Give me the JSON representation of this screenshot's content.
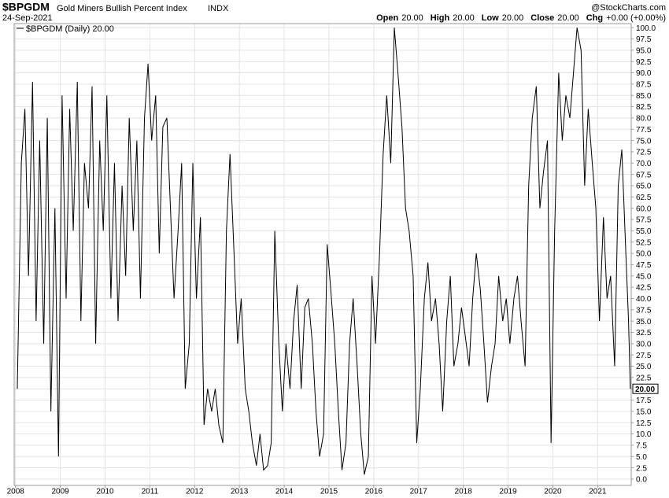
{
  "chart_data": {
    "type": "line",
    "symbol": "$BPGDM",
    "title": "Gold Miners Bullish Percent Index",
    "exchange": "INDX",
    "date": "24-Sep-2021",
    "watermark": "@StockCharts.com",
    "quote": [
      {
        "label": "Open",
        "value": "20.00"
      },
      {
        "label": "High",
        "value": "20.00"
      },
      {
        "label": "Low",
        "value": "20.00"
      },
      {
        "label": "Close",
        "value": "20.00"
      },
      {
        "label": "Chg",
        "value": "+0.00 (+0.00%)"
      }
    ],
    "last_value_label": "20.00",
    "grid": true,
    "x": [
      2008.04,
      2008.13,
      2008.21,
      2008.29,
      2008.38,
      2008.46,
      2008.54,
      2008.63,
      2008.71,
      2008.79,
      2008.88,
      2008.96,
      2009.04,
      2009.13,
      2009.21,
      2009.29,
      2009.38,
      2009.46,
      2009.54,
      2009.63,
      2009.71,
      2009.79,
      2009.88,
      2009.96,
      2010.04,
      2010.13,
      2010.21,
      2010.29,
      2010.38,
      2010.46,
      2010.54,
      2010.63,
      2010.71,
      2010.79,
      2010.88,
      2010.96,
      2011.04,
      2011.13,
      2011.21,
      2011.29,
      2011.38,
      2011.46,
      2011.54,
      2011.63,
      2011.71,
      2011.79,
      2011.88,
      2011.96,
      2012.04,
      2012.13,
      2012.21,
      2012.29,
      2012.38,
      2012.46,
      2012.54,
      2012.63,
      2012.71,
      2012.79,
      2012.88,
      2012.96,
      2013.04,
      2013.13,
      2013.21,
      2013.29,
      2013.38,
      2013.46,
      2013.54,
      2013.63,
      2013.71,
      2013.79,
      2013.88,
      2013.96,
      2014.04,
      2014.13,
      2014.21,
      2014.29,
      2014.38,
      2014.46,
      2014.54,
      2014.63,
      2014.71,
      2014.79,
      2014.88,
      2014.96,
      2015.04,
      2015.13,
      2015.21,
      2015.29,
      2015.38,
      2015.46,
      2015.54,
      2015.63,
      2015.71,
      2015.79,
      2015.88,
      2015.96,
      2016.04,
      2016.13,
      2016.21,
      2016.29,
      2016.38,
      2016.46,
      2016.54,
      2016.63,
      2016.71,
      2016.79,
      2016.88,
      2016.96,
      2017.04,
      2017.13,
      2017.21,
      2017.29,
      2017.38,
      2017.46,
      2017.54,
      2017.63,
      2017.71,
      2017.79,
      2017.88,
      2017.96,
      2018.04,
      2018.13,
      2018.21,
      2018.29,
      2018.38,
      2018.46,
      2018.54,
      2018.63,
      2018.71,
      2018.79,
      2018.88,
      2018.96,
      2019.04,
      2019.13,
      2019.21,
      2019.29,
      2019.38,
      2019.46,
      2019.54,
      2019.63,
      2019.71,
      2019.79,
      2019.88,
      2019.96,
      2020.04,
      2020.13,
      2020.21,
      2020.29,
      2020.38,
      2020.46,
      2020.54,
      2020.63,
      2020.71,
      2020.79,
      2020.88,
      2020.96,
      2021.04,
      2021.13,
      2021.21,
      2021.29,
      2021.38,
      2021.46,
      2021.54,
      2021.63,
      2021.69,
      2021.73
    ],
    "series": [
      {
        "name": "$BPGDM (Daily) 20.00",
        "color": "#000000",
        "values": [
          20,
          70,
          82,
          45,
          88,
          35,
          75,
          30,
          80,
          15,
          60,
          5,
          85,
          40,
          82,
          55,
          88,
          35,
          70,
          60,
          87,
          30,
          75,
          55,
          85,
          40,
          70,
          35,
          65,
          45,
          80,
          55,
          75,
          40,
          80,
          92,
          75,
          85,
          50,
          78,
          80,
          60,
          40,
          55,
          70,
          20,
          30,
          70,
          40,
          58,
          12,
          20,
          15,
          20,
          12,
          8,
          55,
          72,
          50,
          30,
          40,
          20,
          15,
          8,
          3,
          10,
          2,
          3,
          8,
          55,
          30,
          15,
          30,
          20,
          35,
          43,
          20,
          38,
          40,
          30,
          15,
          5,
          10,
          52,
          42,
          30,
          15,
          2,
          8,
          30,
          40,
          25,
          10,
          1,
          5,
          45,
          30,
          50,
          72,
          85,
          70,
          100,
          90,
          78,
          60,
          55,
          45,
          8,
          20,
          40,
          48,
          35,
          40,
          30,
          15,
          35,
          45,
          25,
          30,
          38,
          32,
          25,
          40,
          50,
          42,
          30,
          17,
          25,
          30,
          45,
          35,
          40,
          30,
          40,
          45,
          35,
          25,
          65,
          80,
          87,
          60,
          68,
          75,
          8,
          55,
          90,
          75,
          85,
          80,
          90,
          100,
          95,
          65,
          82,
          70,
          60,
          35,
          58,
          40,
          45,
          25,
          65,
          73,
          50,
          35,
          20
        ]
      }
    ],
    "xlim": [
      2007.97,
      2021.75
    ],
    "xticks": [
      2008,
      2009,
      2010,
      2011,
      2012,
      2013,
      2014,
      2015,
      2016,
      2017,
      2018,
      2019,
      2020,
      2021
    ],
    "ylim": [
      -1.4,
      100.9
    ],
    "yticks": [
      {
        "value": 0,
        "label": "0.0"
      },
      {
        "value": 2.5,
        "label": "2.5"
      },
      {
        "value": 5,
        "label": "5.0"
      },
      {
        "value": 7.5,
        "label": "7.5"
      },
      {
        "value": 10,
        "label": "10.0"
      },
      {
        "value": 12.5,
        "label": "12.5"
      },
      {
        "value": 15,
        "label": "15.0"
      },
      {
        "value": 17.5,
        "label": "17.5"
      },
      {
        "value": 20,
        "label": "20.0"
      },
      {
        "value": 22.5,
        "label": "22.5"
      },
      {
        "value": 25,
        "label": "25.0"
      },
      {
        "value": 27.5,
        "label": "27.5"
      },
      {
        "value": 30,
        "label": "30.0"
      },
      {
        "value": 32.5,
        "label": "32.5"
      },
      {
        "value": 35,
        "label": "35.0"
      },
      {
        "value": 37.5,
        "label": "37.5"
      },
      {
        "value": 40,
        "label": "40.0"
      },
      {
        "value": 42.5,
        "label": "42.5"
      },
      {
        "value": 45,
        "label": "45.0"
      },
      {
        "value": 47.5,
        "label": "47.5"
      },
      {
        "value": 50,
        "label": "50.0"
      },
      {
        "value": 52.5,
        "label": "52.5"
      },
      {
        "value": 55,
        "label": "55.0"
      },
      {
        "value": 57.5,
        "label": "57.5"
      },
      {
        "value": 60,
        "label": "60.0"
      },
      {
        "value": 62.5,
        "label": "62.5"
      },
      {
        "value": 65,
        "label": "65.0"
      },
      {
        "value": 67.5,
        "label": "67.5"
      },
      {
        "value": 70,
        "label": "70.0"
      },
      {
        "value": 72.5,
        "label": "72.5"
      },
      {
        "value": 75,
        "label": "75.0"
      },
      {
        "value": 77.5,
        "label": "77.5"
      },
      {
        "value": 80,
        "label": "80.0"
      },
      {
        "value": 82.5,
        "label": "82.5"
      },
      {
        "value": 85,
        "label": "85.0"
      },
      {
        "value": 87.5,
        "label": "87.5"
      },
      {
        "value": 90,
        "label": "90.0"
      },
      {
        "value": 92.5,
        "label": "92.5"
      },
      {
        "value": 95,
        "label": "95.0"
      },
      {
        "value": 97.5,
        "label": "97.5"
      },
      {
        "value": 100,
        "label": "100.0"
      }
    ]
  }
}
